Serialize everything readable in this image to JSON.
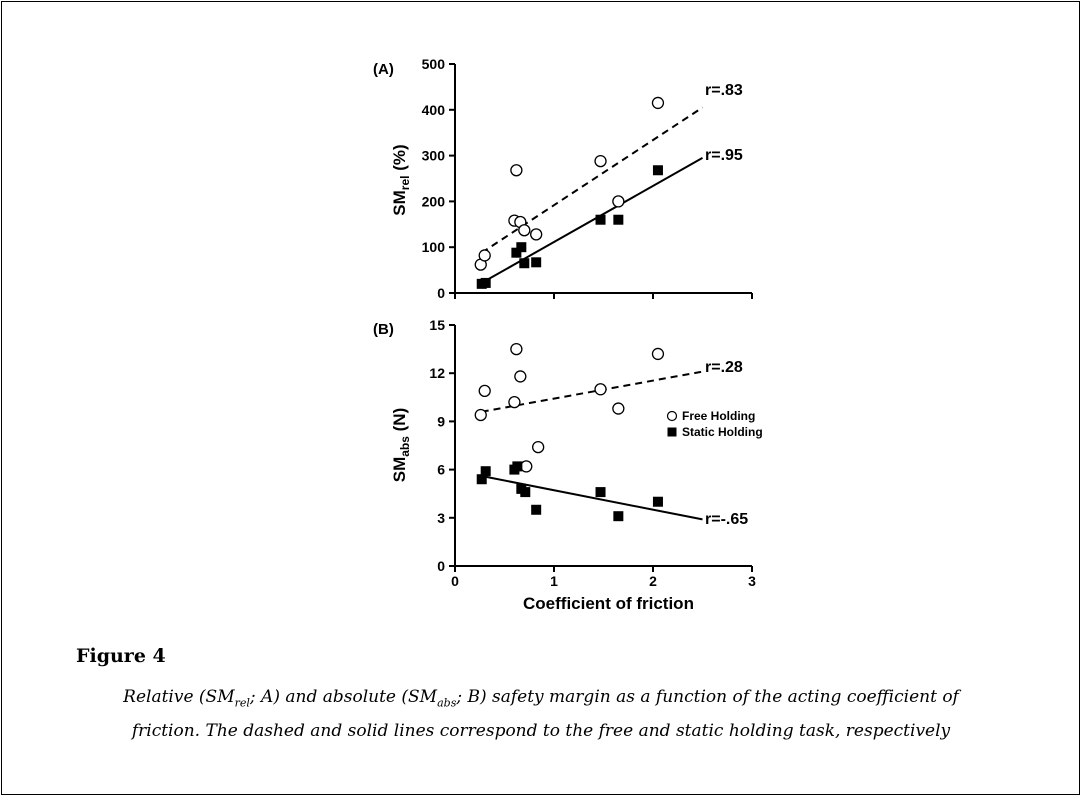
{
  "chart_data": [
    {
      "type": "scatter",
      "panel_label": "(A)",
      "ylabel_main": "SM",
      "ylabel_sub": "rel",
      "ylabel_tail": " (%)",
      "xlabel": "",
      "xlim": [
        0,
        3
      ],
      "ylim": [
        0,
        500
      ],
      "xticks": [
        "0",
        "1",
        "2",
        "3"
      ],
      "yticks": [
        "0",
        "100",
        "200",
        "300",
        "400",
        "500"
      ],
      "series": [
        {
          "marker": "open-circle",
          "points": [
            [
              0.26,
              62
            ],
            [
              0.3,
              82
            ],
            [
              0.6,
              158
            ],
            [
              0.62,
              268
            ],
            [
              0.66,
              155
            ],
            [
              0.7,
              137
            ],
            [
              0.82,
              128
            ],
            [
              1.47,
              288
            ],
            [
              1.65,
              200
            ],
            [
              2.05,
              415
            ]
          ]
        },
        {
          "marker": "filled-square",
          "points": [
            [
              0.27,
              20
            ],
            [
              0.31,
              22
            ],
            [
              0.62,
              88
            ],
            [
              0.67,
              100
            ],
            [
              0.7,
              65
            ],
            [
              0.82,
              67
            ],
            [
              1.47,
              160
            ],
            [
              1.65,
              160
            ],
            [
              2.05,
              268
            ]
          ]
        }
      ],
      "fit_lines": [
        {
          "style": "dashed",
          "from": [
            0.27,
            88
          ],
          "to": [
            2.5,
            405
          ],
          "label": "r=.83"
        },
        {
          "style": "solid",
          "from": [
            0.27,
            22
          ],
          "to": [
            2.5,
            295
          ],
          "label": "r=.95"
        }
      ]
    },
    {
      "type": "scatter",
      "panel_label": "(B)",
      "ylabel_main": "SM",
      "ylabel_sub": "abs",
      "ylabel_tail": " (N)",
      "xlabel": "Coefficient of friction",
      "xlim": [
        0,
        3
      ],
      "ylim": [
        0,
        15
      ],
      "xticks": [
        "0",
        "1",
        "2",
        "3"
      ],
      "yticks": [
        "0",
        "3",
        "6",
        "9",
        "12",
        "15"
      ],
      "series": [
        {
          "name": "Free Holding",
          "marker": "open-circle",
          "points": [
            [
              0.26,
              9.4
            ],
            [
              0.3,
              10.9
            ],
            [
              0.6,
              10.2
            ],
            [
              0.62,
              13.5
            ],
            [
              0.66,
              11.8
            ],
            [
              0.72,
              6.2
            ],
            [
              0.84,
              7.4
            ],
            [
              1.47,
              11.0
            ],
            [
              1.65,
              9.8
            ],
            [
              2.05,
              13.2
            ]
          ]
        },
        {
          "name": "Static Holding",
          "marker": "filled-square",
          "points": [
            [
              0.27,
              5.4
            ],
            [
              0.31,
              5.9
            ],
            [
              0.6,
              6.0
            ],
            [
              0.63,
              6.2
            ],
            [
              0.67,
              4.8
            ],
            [
              0.71,
              4.6
            ],
            [
              0.82,
              3.5
            ],
            [
              1.47,
              4.6
            ],
            [
              1.65,
              3.1
            ],
            [
              2.05,
              4.0
            ]
          ]
        }
      ],
      "fit_lines": [
        {
          "style": "dashed",
          "from": [
            0.27,
            9.6
          ],
          "to": [
            2.5,
            12.1
          ],
          "label": "r=.28"
        },
        {
          "style": "solid",
          "from": [
            0.27,
            5.6
          ],
          "to": [
            2.5,
            2.9
          ],
          "label": "r=-.65"
        }
      ],
      "legend_position": "right"
    }
  ],
  "figure": {
    "label": "Figure 4",
    "caption_parts": [
      {
        "t": "Relative (SM"
      },
      {
        "t": "rel",
        "sub": true
      },
      {
        "t": "; A) and absolute (SM"
      },
      {
        "t": "abs",
        "sub": true
      },
      {
        "t": "; B) safety margin as a function of the acting coefficient of friction. The dashed and solid lines correspond to the free and static holding task, respectively"
      }
    ]
  }
}
